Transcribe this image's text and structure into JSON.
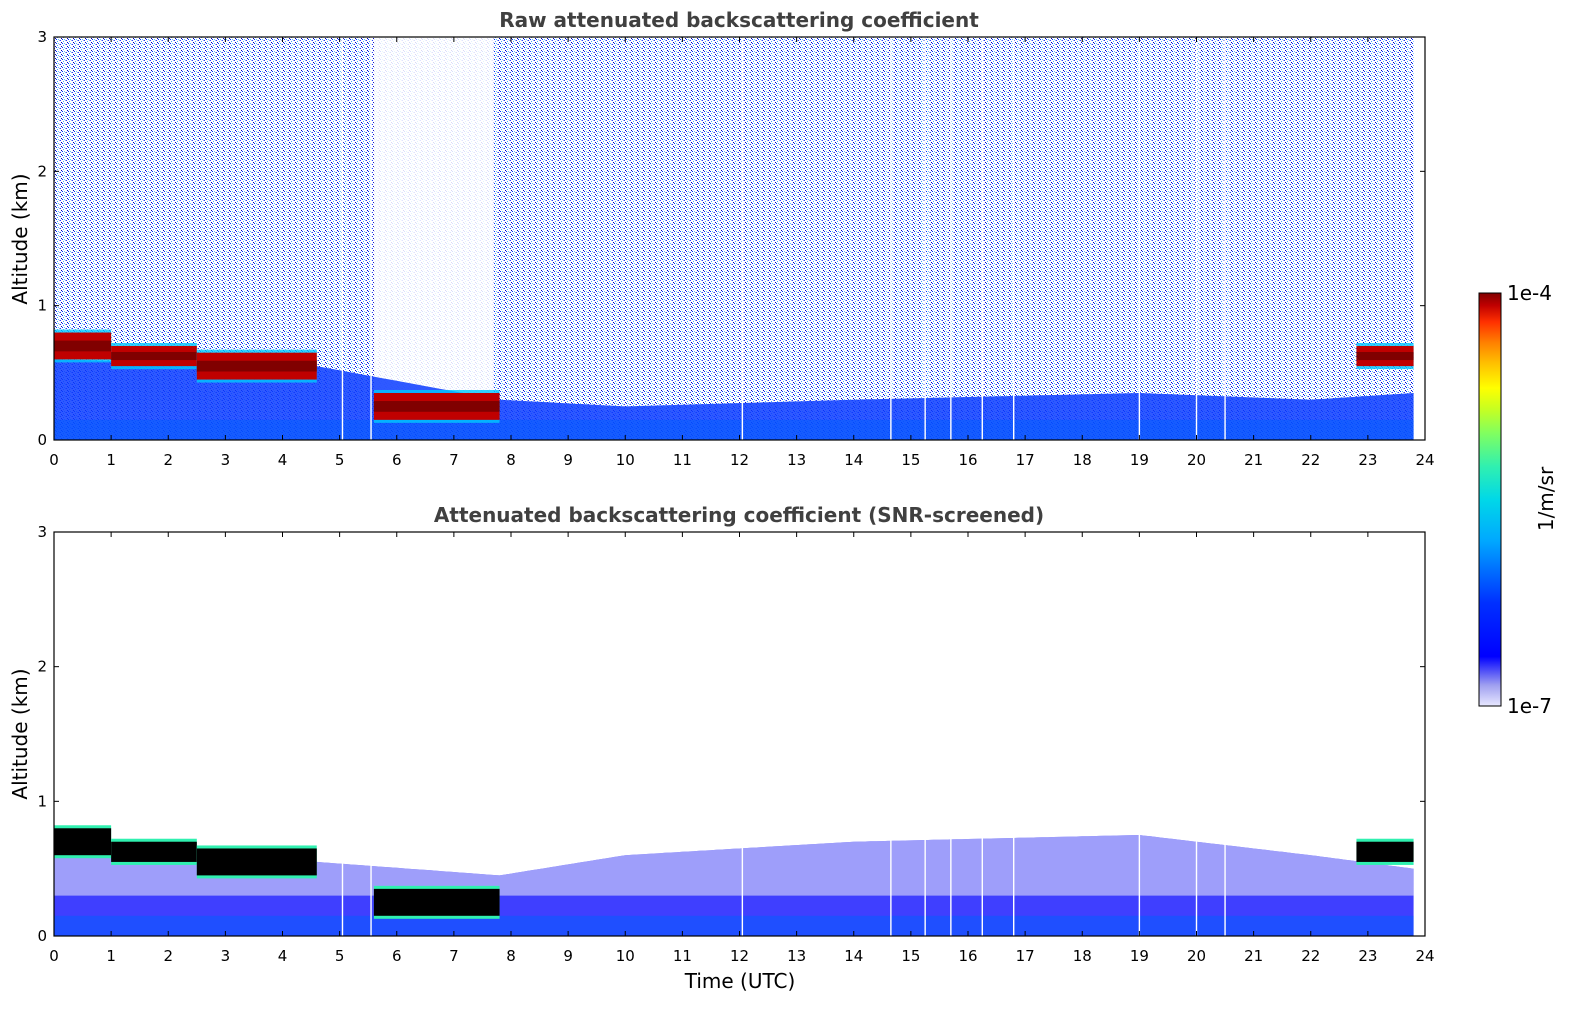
{
  "chart_data": [
    {
      "type": "heatmap",
      "title": "Raw attenuated backscattering coefficient",
      "xlabel": "",
      "ylabel": "Altitude (km)",
      "xlim": [
        0,
        24
      ],
      "ylim": [
        0,
        3
      ],
      "xticks": [
        "0",
        "1",
        "2",
        "3",
        "4",
        "5",
        "6",
        "7",
        "8",
        "9",
        "10",
        "11",
        "12",
        "13",
        "14",
        "15",
        "16",
        "17",
        "18",
        "19",
        "20",
        "21",
        "22",
        "23",
        "24"
      ],
      "yticks": [
        "0",
        "1",
        "2",
        "3"
      ],
      "grid": false,
      "data_end_hour": 23.8,
      "gaps_utc": [
        5.05,
        5.55,
        12.05,
        14.65,
        15.25,
        15.7,
        16.25,
        16.8,
        19.0,
        20.0,
        20.5
      ],
      "cloud_layers": [
        {
          "from": 0.0,
          "to": 1.0,
          "bottom_km": 0.6,
          "top_km": 0.8
        },
        {
          "from": 1.0,
          "to": 2.5,
          "bottom_km": 0.55,
          "top_km": 0.7
        },
        {
          "from": 2.5,
          "to": 4.6,
          "bottom_km": 0.45,
          "top_km": 0.65
        },
        {
          "from": 5.6,
          "to": 7.8,
          "bottom_km": 0.15,
          "top_km": 0.35
        },
        {
          "from": 22.8,
          "to": 23.8,
          "bottom_km": 0.55,
          "top_km": 0.7
        }
      ],
      "boundary_layer_top_km": [
        [
          0,
          0.6
        ],
        [
          4.6,
          0.55
        ],
        [
          7.8,
          0.3
        ],
        [
          10,
          0.25
        ],
        [
          14,
          0.3
        ],
        [
          19,
          0.35
        ],
        [
          22,
          0.3
        ],
        [
          23.8,
          0.35
        ]
      ]
    },
    {
      "type": "heatmap",
      "title": "Attenuated backscattering coefficient (SNR-screened)",
      "xlabel": "Time (UTC)",
      "ylabel": "Altitude (km)",
      "xlim": [
        0,
        24
      ],
      "ylim": [
        0,
        3
      ],
      "xticks": [
        "0",
        "1",
        "2",
        "3",
        "4",
        "5",
        "6",
        "7",
        "8",
        "9",
        "10",
        "11",
        "12",
        "13",
        "14",
        "15",
        "16",
        "17",
        "18",
        "19",
        "20",
        "21",
        "22",
        "23",
        "24"
      ],
      "yticks": [
        "0",
        "1",
        "2",
        "3"
      ],
      "grid": false,
      "data_end_hour": 23.8,
      "gaps_utc": [
        5.05,
        5.55,
        12.05,
        14.65,
        15.25,
        15.7,
        16.25,
        16.8,
        19.0,
        20.0,
        20.5
      ],
      "masked_color": "#000000",
      "cloud_layers": [
        {
          "from": 0.0,
          "to": 1.0,
          "bottom_km": 0.6,
          "top_km": 0.8
        },
        {
          "from": 1.0,
          "to": 2.5,
          "bottom_km": 0.55,
          "top_km": 0.7
        },
        {
          "from": 2.5,
          "to": 4.6,
          "bottom_km": 0.45,
          "top_km": 0.65
        },
        {
          "from": 5.6,
          "to": 7.8,
          "bottom_km": 0.15,
          "top_km": 0.35
        },
        {
          "from": 22.8,
          "to": 23.8,
          "bottom_km": 0.55,
          "top_km": 0.7
        }
      ],
      "boundary_layer_top_km": [
        [
          0,
          0.6
        ],
        [
          4.6,
          0.55
        ],
        [
          7.8,
          0.45
        ],
        [
          10,
          0.6
        ],
        [
          14,
          0.7
        ],
        [
          19,
          0.75
        ],
        [
          22,
          0.6
        ],
        [
          23.8,
          0.5
        ]
      ]
    }
  ],
  "colorbar": {
    "label": "1/m/sr",
    "max_label": "1e-4",
    "min_label": "1e-7",
    "scale": "log",
    "colors": [
      "#e8e8ff",
      "#c8c8f8",
      "#a0a0f0",
      "#6060ff",
      "#0000ff",
      "#0030ff",
      "#0070ff",
      "#00a8ff",
      "#00d8e8",
      "#30f0b0",
      "#80ff60",
      "#c8ff20",
      "#ffff00",
      "#ffc000",
      "#ff8000",
      "#ff3000",
      "#e00000",
      "#a00000",
      "#800000"
    ]
  }
}
